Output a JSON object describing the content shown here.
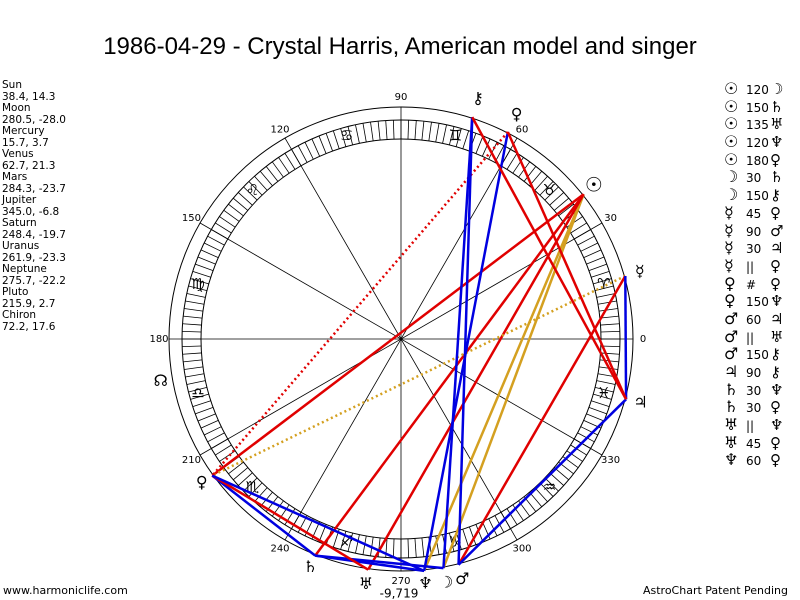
{
  "title": "1986-04-29 - Crystal Harris, American model and singer",
  "planets": [
    {
      "name": "Sun",
      "coords": "38.4, 14.3",
      "glyph": "☉",
      "lon": 38.4
    },
    {
      "name": "Moon",
      "coords": "280.5, -28.0",
      "glyph": "☽",
      "lon": 280.5
    },
    {
      "name": "Mercury",
      "coords": "15.7, 3.7",
      "glyph": "☿",
      "lon": 15.7
    },
    {
      "name": "Venus",
      "coords": "62.7, 21.3",
      "glyph": "♀",
      "lon": 62.7
    },
    {
      "name": "Mars",
      "coords": "284.3, -23.7",
      "glyph": "♂",
      "lon": 284.3
    },
    {
      "name": "Jupiter",
      "coords": "345.0, -6.8",
      "glyph": "♃",
      "lon": 345.0
    },
    {
      "name": "Saturn",
      "coords": "248.4, -19.7",
      "glyph": "♄",
      "lon": 248.4
    },
    {
      "name": "Uranus",
      "coords": "261.9, -23.3",
      "glyph": "♅",
      "lon": 261.9
    },
    {
      "name": "Neptune",
      "coords": "275.7, -22.2",
      "glyph": "♆",
      "lon": 275.7
    },
    {
      "name": "Pluto",
      "coords": "215.9, 2.7",
      "glyph": "♀",
      "lon": 215.9
    },
    {
      "name": "Chiron",
      "coords": "72.2, 17.6",
      "glyph": "⚷",
      "lon": 72.2
    }
  ],
  "aspects": [
    {
      "p1": "☉",
      "angle": "120",
      "p2": "☽"
    },
    {
      "p1": "☉",
      "angle": "150",
      "p2": "♄"
    },
    {
      "p1": "☉",
      "angle": "135",
      "p2": "♅"
    },
    {
      "p1": "☉",
      "angle": "120",
      "p2": "♆"
    },
    {
      "p1": "☉",
      "angle": "180",
      "p2": "♀"
    },
    {
      "p1": "☽",
      "angle": "30",
      "p2": "♄"
    },
    {
      "p1": "☽",
      "angle": "150",
      "p2": "⚷"
    },
    {
      "p1": "☿",
      "angle": "45",
      "p2": "♀"
    },
    {
      "p1": "☿",
      "angle": "90",
      "p2": "♂"
    },
    {
      "p1": "☿",
      "angle": "30",
      "p2": "♃"
    },
    {
      "p1": "☿",
      "angle": "||",
      "p2": "♀"
    },
    {
      "p1": "♀",
      "angle": "#",
      "p2": "♀"
    },
    {
      "p1": "♀",
      "angle": "150",
      "p2": "♆"
    },
    {
      "p1": "♂",
      "angle": "60",
      "p2": "♃"
    },
    {
      "p1": "♂",
      "angle": "||",
      "p2": "♅"
    },
    {
      "p1": "♂",
      "angle": "150",
      "p2": "⚷"
    },
    {
      "p1": "♃",
      "angle": "90",
      "p2": "⚷"
    },
    {
      "p1": "♄",
      "angle": "30",
      "p2": "♆"
    },
    {
      "p1": "♄",
      "angle": "30",
      "p2": "♀"
    },
    {
      "p1": "♅",
      "angle": "||",
      "p2": "♆"
    },
    {
      "p1": "♅",
      "angle": "45",
      "p2": "♀"
    },
    {
      "p1": "♆",
      "angle": "60",
      "p2": "♀"
    }
  ],
  "wheel": {
    "degree_labels": [
      "0",
      "30",
      "60",
      "90",
      "120",
      "150",
      "180",
      "210",
      "240",
      "270",
      "300",
      "330"
    ],
    "signs": [
      "♈",
      "♉",
      "♊",
      "♋",
      "♌",
      "♍",
      "♎",
      "♏",
      "♐",
      "♑",
      "♒",
      "♓"
    ],
    "node_glyph": "☊",
    "node_lon": 190,
    "extra_label": "-9,719"
  },
  "aspect_lines": [
    {
      "a": "Sun",
      "b": "Moon",
      "color": "#d4a020"
    },
    {
      "a": "Sun",
      "b": "Neptune",
      "color": "#d4a020"
    },
    {
      "a": "Sun",
      "b": "Saturn",
      "color": "#e00000"
    },
    {
      "a": "Sun",
      "b": "Pluto",
      "color": "#e00000"
    },
    {
      "a": "Sun",
      "b": "Uranus",
      "color": "#e00000"
    },
    {
      "a": "Mercury",
      "b": "Pluto",
      "color": "#d4a020",
      "dotted": true
    },
    {
      "a": "Mercury",
      "b": "Mars",
      "color": "#e00000"
    },
    {
      "a": "Mercury",
      "b": "Jupiter",
      "color": "#0000e0"
    },
    {
      "a": "Venus",
      "b": "Neptune",
      "color": "#0000e0"
    },
    {
      "a": "Venus",
      "b": "Pluto",
      "color": "#e00000",
      "dotted": true
    },
    {
      "a": "Venus",
      "b": "Jupiter",
      "color": "#e00000"
    },
    {
      "a": "Mars",
      "b": "Jupiter",
      "color": "#0000e0"
    },
    {
      "a": "Mars",
      "b": "Chiron",
      "color": "#0000e0"
    },
    {
      "a": "Moon",
      "b": "Chiron",
      "color": "#0000e0"
    },
    {
      "a": "Moon",
      "b": "Saturn",
      "color": "#0000e0"
    },
    {
      "a": "Jupiter",
      "b": "Chiron",
      "color": "#e00000"
    },
    {
      "a": "Saturn",
      "b": "Neptune",
      "color": "#0000e0"
    },
    {
      "a": "Saturn",
      "b": "Pluto",
      "color": "#0000e0"
    },
    {
      "a": "Uranus",
      "b": "Pluto",
      "color": "#e00000"
    },
    {
      "a": "Neptune",
      "b": "Pluto",
      "color": "#0000e0"
    }
  ],
  "footer": {
    "left": "www.harmoniclife.com",
    "right": "AstroChart Patent Pending"
  }
}
